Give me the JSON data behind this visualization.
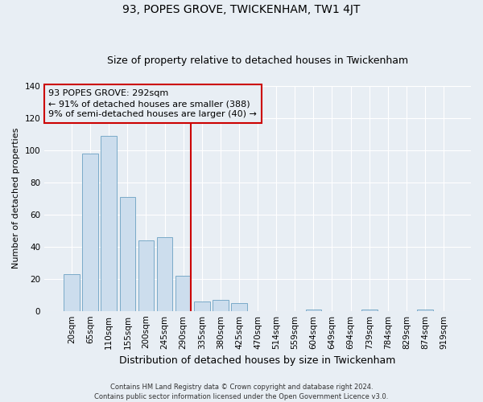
{
  "title": "93, POPES GROVE, TWICKENHAM, TW1 4JT",
  "subtitle": "Size of property relative to detached houses in Twickenham",
  "xlabel": "Distribution of detached houses by size in Twickenham",
  "ylabel": "Number of detached properties",
  "footer_line1": "Contains HM Land Registry data © Crown copyright and database right 2024.",
  "footer_line2": "Contains public sector information licensed under the Open Government Licence v3.0.",
  "bin_labels": [
    "20sqm",
    "65sqm",
    "110sqm",
    "155sqm",
    "200sqm",
    "245sqm",
    "290sqm",
    "335sqm",
    "380sqm",
    "425sqm",
    "470sqm",
    "514sqm",
    "559sqm",
    "604sqm",
    "649sqm",
    "694sqm",
    "739sqm",
    "784sqm",
    "829sqm",
    "874sqm",
    "919sqm"
  ],
  "bar_values": [
    23,
    98,
    109,
    71,
    44,
    46,
    22,
    6,
    7,
    5,
    0,
    0,
    0,
    1,
    0,
    0,
    1,
    0,
    0,
    1,
    0
  ],
  "bar_color": "#ccdded",
  "bar_edgecolor": "#7aaac8",
  "vline_x_index": 6,
  "annotation_line1": "93 POPES GROVE: 292sqm",
  "annotation_line2": "← 91% of detached houses are smaller (388)",
  "annotation_line3": "9% of semi-detached houses are larger (40) →",
  "annotation_box_edgecolor": "#cc0000",
  "vline_color": "#cc0000",
  "ylim": [
    0,
    140
  ],
  "yticks": [
    0,
    20,
    40,
    60,
    80,
    100,
    120,
    140
  ],
  "plot_bg_color": "#e8eef4",
  "fig_bg_color": "#e8eef4",
  "grid_color": "#ffffff",
  "title_fontsize": 10,
  "subtitle_fontsize": 9,
  "ylabel_fontsize": 8,
  "xlabel_fontsize": 9,
  "tick_fontsize": 7.5,
  "footer_fontsize": 6,
  "annotation_fontsize": 8
}
